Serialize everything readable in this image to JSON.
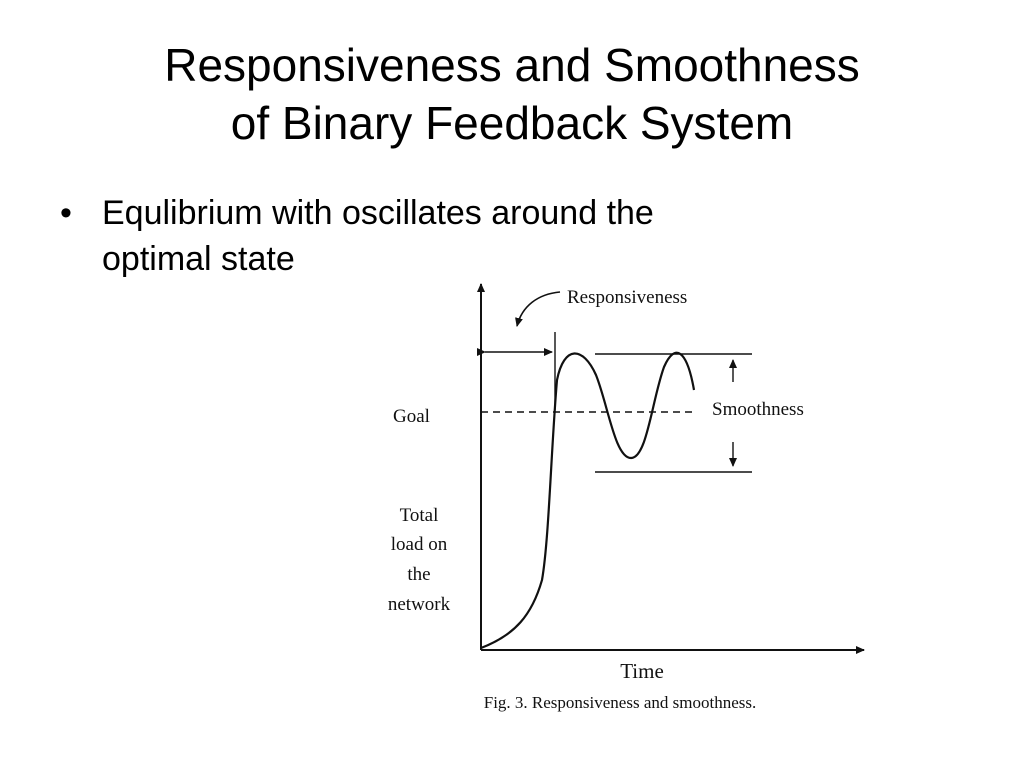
{
  "slide": {
    "title_lines": [
      "Responsiveness and Smoothness",
      "of Binary Feedback System"
    ],
    "bullets": [
      {
        "line1": "Equlibrium with oscillates around the",
        "line2": "optimal state"
      }
    ]
  },
  "figure": {
    "labels": {
      "responsiveness": "Responsiveness",
      "smoothness": "Smoothness",
      "goal": "Goal",
      "y_label_lines": [
        "Total",
        "load on",
        "the",
        "network"
      ],
      "x_label": "Time"
    },
    "caption": "Fig. 3. Responsiveness and smoothness.",
    "colors": {
      "ink": "#111111",
      "background": "#ffffff"
    }
  }
}
